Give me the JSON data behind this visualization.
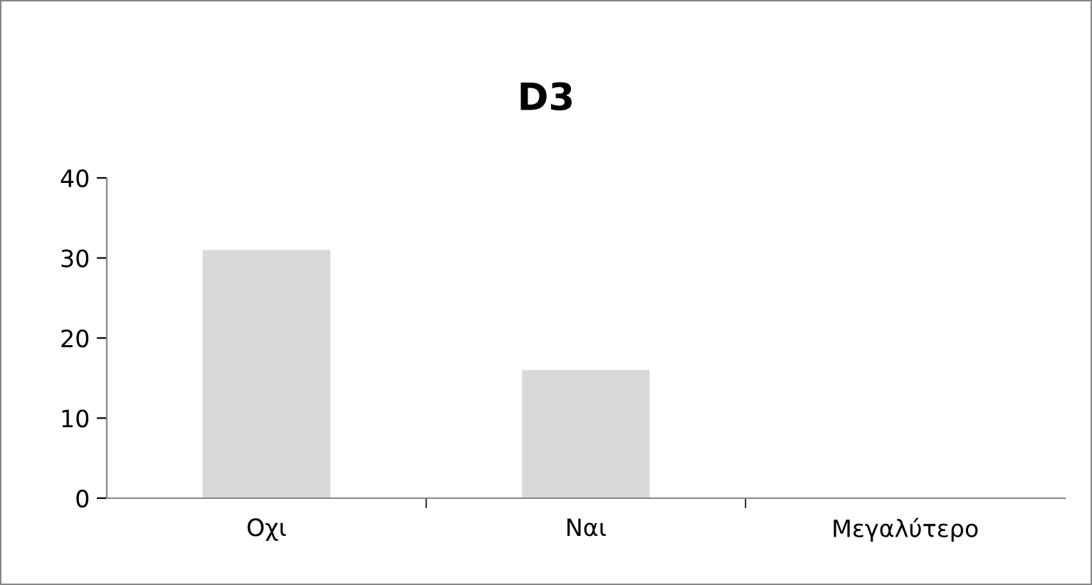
{
  "chart_data": {
    "type": "bar",
    "title": "D3",
    "categories": [
      "Οχι",
      "Ναι",
      "Μεγαλύτερο"
    ],
    "values": [
      31,
      16,
      0
    ],
    "color": "#d9d9d9",
    "ylim": [
      0,
      40
    ],
    "yticks": [
      0,
      10,
      20,
      30,
      40
    ],
    "grid": false,
    "legend": false
  }
}
